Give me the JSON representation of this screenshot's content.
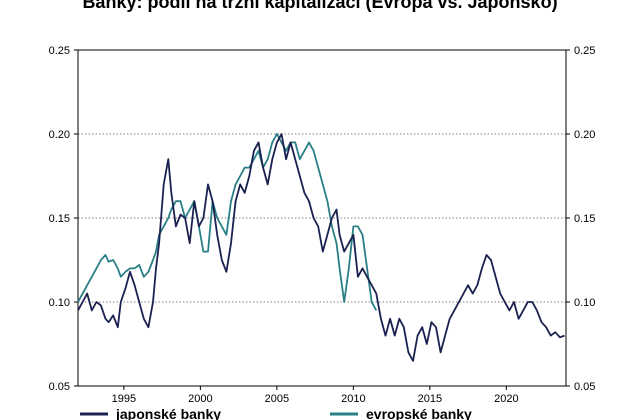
{
  "chart_data": {
    "type": "line",
    "title": "Banky: podíl na tržní kapitalizaci (Evropa vs. Japonsko)",
    "xlabel": "",
    "ylabel": "",
    "xlim": [
      1992,
      2023.9
    ],
    "ylim": [
      0.05,
      0.25
    ],
    "y_ticks": [
      "0.05",
      "0.10",
      "0.15",
      "0.20",
      "0.25"
    ],
    "x_ticks": [
      "1995",
      "2000",
      "2005",
      "2010",
      "2015",
      "2020"
    ],
    "grid": "horizontal dashed",
    "legend_position": "bottom",
    "colors": {
      "japan": "#1a2150",
      "europe": "#2a7f86"
    },
    "series": [
      {
        "name": "japonské banky",
        "x": [
          1992.0,
          1992.3,
          1992.6,
          1992.9,
          1993.2,
          1993.5,
          1993.8,
          1994.0,
          1994.3,
          1994.6,
          1994.8,
          1995.1,
          1995.4,
          1995.7,
          1996.0,
          1996.3,
          1996.6,
          1996.9,
          1997.1,
          1997.3,
          1997.6,
          1997.9,
          1998.1,
          1998.4,
          1998.7,
          1999.0,
          1999.3,
          1999.6,
          1999.9,
          2000.2,
          2000.5,
          2000.8,
          2001.1,
          2001.4,
          2001.7,
          2002.0,
          2002.3,
          2002.6,
          2002.9,
          2003.2,
          2003.5,
          2003.8,
          2004.1,
          2004.4,
          2004.7,
          2005.0,
          2005.3,
          2005.6,
          2005.9,
          2006.2,
          2006.5,
          2006.8,
          2007.1,
          2007.4,
          2007.7,
          2008.0,
          2008.3,
          2008.6,
          2008.9,
          2009.1,
          2009.4,
          2009.7,
          2010.0,
          2010.3,
          2010.6,
          2010.9,
          2011.2,
          2011.5,
          2011.8,
          2012.1,
          2012.4,
          2012.7,
          2013.0,
          2013.3,
          2013.6,
          2013.9,
          2014.2,
          2014.5,
          2014.8,
          2015.1,
          2015.4,
          2015.7,
          2016.0,
          2016.3,
          2016.6,
          2016.9,
          2017.2,
          2017.5,
          2017.8,
          2018.1,
          2018.4,
          2018.7,
          2019.0,
          2019.3,
          2019.6,
          2019.9,
          2020.2,
          2020.5,
          2020.8,
          2021.1,
          2021.4,
          2021.7,
          2022.0,
          2022.3,
          2022.6,
          2022.9,
          2023.2,
          2023.5,
          2023.8
        ],
        "values": [
          0.095,
          0.1,
          0.105,
          0.095,
          0.1,
          0.098,
          0.09,
          0.088,
          0.092,
          0.085,
          0.1,
          0.108,
          0.118,
          0.11,
          0.1,
          0.09,
          0.085,
          0.1,
          0.12,
          0.135,
          0.17,
          0.185,
          0.165,
          0.145,
          0.152,
          0.15,
          0.135,
          0.16,
          0.145,
          0.15,
          0.17,
          0.16,
          0.14,
          0.125,
          0.118,
          0.135,
          0.16,
          0.17,
          0.165,
          0.175,
          0.19,
          0.195,
          0.18,
          0.17,
          0.185,
          0.195,
          0.2,
          0.185,
          0.195,
          0.185,
          0.175,
          0.165,
          0.16,
          0.15,
          0.145,
          0.13,
          0.14,
          0.15,
          0.155,
          0.14,
          0.13,
          0.135,
          0.14,
          0.115,
          0.12,
          0.115,
          0.11,
          0.105,
          0.09,
          0.08,
          0.09,
          0.08,
          0.09,
          0.085,
          0.07,
          0.065,
          0.08,
          0.085,
          0.075,
          0.088,
          0.085,
          0.07,
          0.08,
          0.09,
          0.095,
          0.1,
          0.105,
          0.11,
          0.105,
          0.11,
          0.12,
          0.128,
          0.125,
          0.115,
          0.105,
          0.1,
          0.095,
          0.1,
          0.09,
          0.095,
          0.1,
          0.1,
          0.095,
          0.088,
          0.085,
          0.08,
          0.082,
          0.079,
          0.08
        ]
      },
      {
        "name": "evropské banky",
        "x": [
          1992.0,
          1992.3,
          1992.6,
          1992.9,
          1993.2,
          1993.5,
          1993.8,
          1994.0,
          1994.3,
          1994.6,
          1994.8,
          1995.1,
          1995.4,
          1995.7,
          1996.0,
          1996.3,
          1996.6,
          1996.9,
          1997.1,
          1997.3,
          1997.6,
          1997.9,
          1998.1,
          1998.4,
          1998.7,
          1999.0,
          1999.3,
          1999.6,
          1999.9,
          2000.2,
          2000.5,
          2000.8,
          2001.1,
          2001.4,
          2001.7,
          2002.0,
          2002.3,
          2002.6,
          2002.9,
          2003.2,
          2003.5,
          2003.8,
          2004.1,
          2004.4,
          2004.7,
          2005.0,
          2005.3,
          2005.6,
          2005.9,
          2006.2,
          2006.5,
          2006.8,
          2007.1,
          2007.4,
          2007.7,
          2008.0,
          2008.3,
          2008.6,
          2008.9,
          2009.1,
          2009.4,
          2009.7,
          2010.0,
          2010.3,
          2010.6,
          2010.9,
          2011.2,
          2011.5
        ],
        "values": [
          0.1,
          0.105,
          0.11,
          0.115,
          0.12,
          0.125,
          0.128,
          0.124,
          0.125,
          0.12,
          0.115,
          0.118,
          0.12,
          0.12,
          0.122,
          0.115,
          0.118,
          0.125,
          0.13,
          0.14,
          0.145,
          0.15,
          0.155,
          0.16,
          0.16,
          0.15,
          0.155,
          0.16,
          0.145,
          0.13,
          0.13,
          0.16,
          0.15,
          0.145,
          0.14,
          0.16,
          0.17,
          0.175,
          0.18,
          0.18,
          0.185,
          0.19,
          0.18,
          0.185,
          0.195,
          0.2,
          0.195,
          0.19,
          0.195,
          0.195,
          0.185,
          0.19,
          0.195,
          0.19,
          0.18,
          0.17,
          0.16,
          0.145,
          0.135,
          0.12,
          0.1,
          0.12,
          0.145,
          0.145,
          0.14,
          0.12,
          0.1,
          0.095
        ]
      }
    ]
  }
}
